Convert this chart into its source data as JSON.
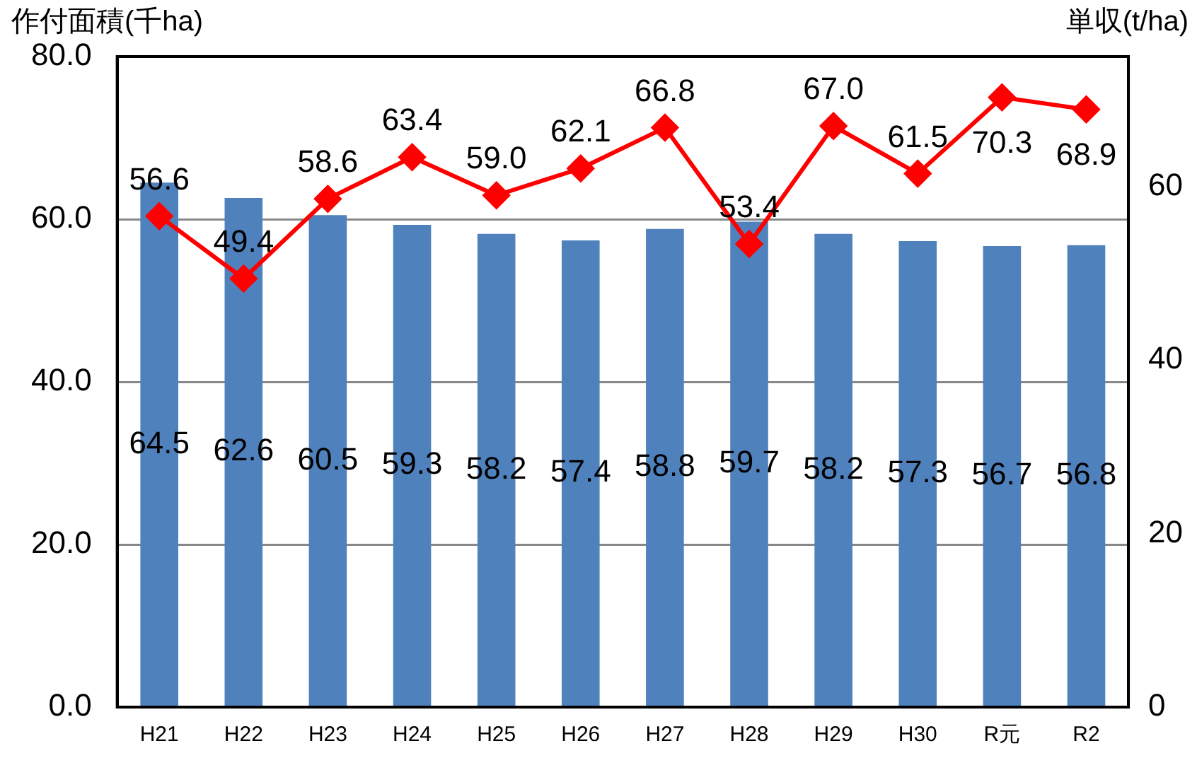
{
  "chart_data": {
    "type": "bar",
    "ylabel": "作付面積(千ha)",
    "y2label": "単収(t/ha)",
    "categories": [
      "H21",
      "H22",
      "H23",
      "H24",
      "H25",
      "H26",
      "H27",
      "H28",
      "H29",
      "H30",
      "R元",
      "R2"
    ],
    "series": [
      {
        "color": "#4f81bd",
        "values": [
          64.5,
          62.6,
          60.5,
          59.3,
          58.2,
          57.4,
          58.8,
          59.7,
          58.2,
          57.3,
          56.7,
          56.8
        ],
        "value_labels": [
          "64.5",
          "62.6",
          "60.5",
          "59.3",
          "58.2",
          "57.4",
          "58.8",
          "59.7",
          "58.2",
          "57.3",
          "56.7",
          "56.8"
        ]
      },
      {
        "type": "line",
        "axis": "y2",
        "color": "#ff0000",
        "marker": "diamond",
        "values": [
          56.6,
          49.4,
          58.6,
          63.4,
          59.0,
          62.1,
          66.8,
          53.4,
          67.0,
          61.5,
          70.3,
          68.9
        ],
        "value_labels": [
          "56.6",
          "49.4",
          "58.6",
          "63.4",
          "59.0",
          "62.1",
          "66.8",
          "53.4",
          "67.0",
          "61.5",
          "70.3",
          "68.9"
        ]
      }
    ],
    "ylim": [
      0,
      80
    ],
    "yticks": [
      {
        "value": 0,
        "label": "0.0"
      },
      {
        "value": 20,
        "label": "20.0"
      },
      {
        "value": 40,
        "label": "40.0"
      },
      {
        "value": 60,
        "label": "60.0"
      },
      {
        "value": 80,
        "label": "80.0"
      }
    ],
    "y2lim": [
      0,
      75
    ],
    "y2ticks": [
      0,
      20,
      40,
      60
    ],
    "grid": "y",
    "legend": false
  }
}
